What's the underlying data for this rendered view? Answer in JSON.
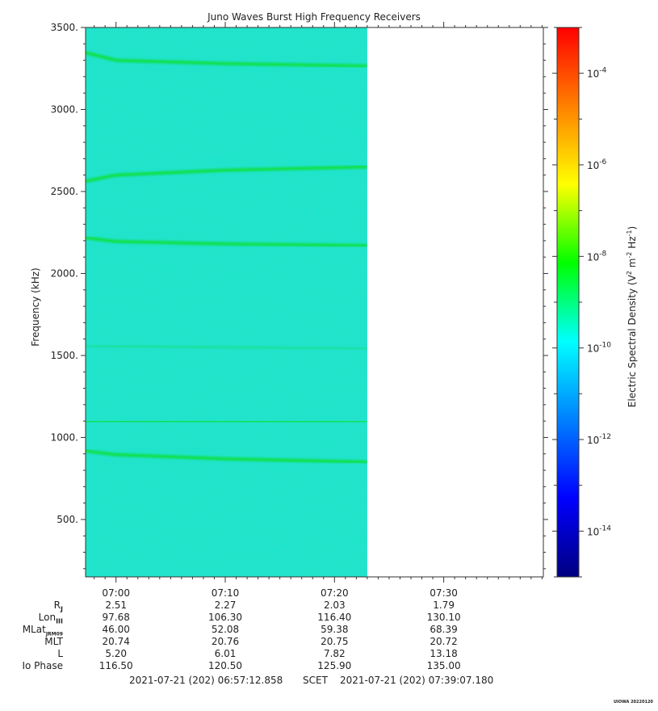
{
  "chart_data": {
    "type": "heatmap",
    "title": "Juno Waves Burst High Frequency Receivers",
    "ylabel": "Frequency (kHz)",
    "ylim": [
      150,
      3500
    ],
    "yticks": [
      500,
      1000,
      1500,
      2000,
      2500,
      3000,
      3500
    ],
    "ytick_labels": [
      "500.",
      "1000.",
      "1500.",
      "2000.",
      "2500.",
      "3000.",
      "3500."
    ],
    "xlim": [
      "06:57:12.858",
      "07:39:07.180"
    ],
    "xticks": [
      "07:00",
      "07:10",
      "07:20",
      "07:30"
    ],
    "data_end": "07:23",
    "colorbar": {
      "label": "Electric Spectral Density (V² m⁻² Hz⁻¹)",
      "scale": "log",
      "range_exp": [
        -15,
        -3
      ],
      "tick_exponents": [
        -14,
        -12,
        -10,
        -8,
        -6,
        -4
      ],
      "tick_labels": [
        "10",
        "10",
        "10",
        "10",
        "10",
        "10"
      ],
      "tick_sups": [
        "-14",
        "-12",
        "-10",
        "-8",
        "-6",
        "-4"
      ],
      "colors": [
        "#000080",
        "#0000ff",
        "#0080ff",
        "#00ffff",
        "#00ff00",
        "#ffff00",
        "#ff8000",
        "#ff0000"
      ],
      "background_color": "#1ee6c8",
      "emission_color": "#10e040"
    },
    "emission_lines": [
      {
        "name": "",
        "points": [
          [
            "06:57",
            3350
          ],
          [
            "07:00",
            3300
          ],
          [
            "07:10",
            3280
          ],
          [
            "07:23",
            3265
          ]
        ]
      },
      {
        "name": "",
        "points": [
          [
            "06:57",
            2560
          ],
          [
            "07:00",
            2600
          ],
          [
            "07:10",
            2630
          ],
          [
            "07:23",
            2650
          ]
        ]
      },
      {
        "name": "",
        "points": [
          [
            "06:57",
            2220
          ],
          [
            "07:00",
            2195
          ],
          [
            "07:10",
            2180
          ],
          [
            "07:23",
            2170
          ]
        ]
      },
      {
        "name": "",
        "points": [
          [
            "06:57",
            1100
          ],
          [
            "07:23",
            1095
          ]
        ]
      },
      {
        "name": "",
        "points": [
          [
            "06:57",
            920
          ],
          [
            "07:00",
            895
          ],
          [
            "07:10",
            870
          ],
          [
            "07:23",
            850
          ]
        ]
      },
      {
        "name": "",
        "points": [
          [
            "06:57",
            1560
          ],
          [
            "07:23",
            1540
          ]
        ]
      }
    ]
  },
  "ephemeris": {
    "rows": [
      {
        "label": "R",
        "sub": "J",
        "values": [
          "2.51",
          "2.27",
          "2.03",
          "1.79"
        ]
      },
      {
        "label": "Lon",
        "sub": "III",
        "values": [
          "97.68",
          "106.30",
          "116.40",
          "130.10"
        ]
      },
      {
        "label": "MLat",
        "sub": "JRM09",
        "values": [
          "46.00",
          "52.08",
          "59.38",
          "68.39"
        ]
      },
      {
        "label": "MLT",
        "sub": "",
        "values": [
          "20.74",
          "20.76",
          "20.75",
          "20.72"
        ]
      },
      {
        "label": "L",
        "sub": "",
        "values": [
          "5.20",
          "6.01",
          "7.82",
          "13.18"
        ]
      },
      {
        "label": "Io Phase",
        "sub": "",
        "values": [
          "116.50",
          "120.50",
          "125.90",
          "135.00"
        ]
      }
    ]
  },
  "footer": {
    "start": "2021-07-21 (202) 06:57:12.858",
    "center": "SCET",
    "end": "2021-07-21 (202) 07:39:07.180"
  },
  "credit": "UIOWA 20220120"
}
